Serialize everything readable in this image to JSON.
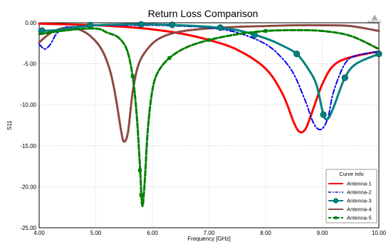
{
  "watermark": "ANSOFT",
  "chart_data": {
    "type": "line",
    "title": "Return Loss Comparison",
    "xlabel": "Frequency [GHz]",
    "ylabel": "S11",
    "xlim": [
      4.0,
      10.0
    ],
    "ylim": [
      -25.0,
      0.0
    ],
    "grid": true,
    "legend_position": "bottom-right",
    "legend_title": "Curve Info",
    "x_ticks": [
      4.0,
      5.0,
      6.0,
      7.0,
      8.0,
      9.0,
      10.0
    ],
    "x_tick_labels": [
      "4.00",
      "5.00",
      "6.00",
      "7.00",
      "8.00",
      "9.00",
      "10.00"
    ],
    "y_ticks": [
      0.0,
      -5.0,
      -10.0,
      -15.0,
      -20.0,
      -25.0
    ],
    "y_tick_labels": [
      "0.00",
      "-5.00",
      "-10.00",
      "-15.00",
      "-20.00",
      "-25.00"
    ],
    "series": [
      {
        "name": "Antenna-1",
        "color": "#ff0000",
        "style": "solid",
        "marker": "none",
        "points": [
          [
            4.0,
            -0.1
          ],
          [
            4.5,
            -0.2
          ],
          [
            5.0,
            -0.3
          ],
          [
            5.5,
            -0.5
          ],
          [
            6.0,
            -0.8
          ],
          [
            6.5,
            -1.3
          ],
          [
            7.0,
            -2.1
          ],
          [
            7.5,
            -3.3
          ],
          [
            8.0,
            -5.6
          ],
          [
            8.3,
            -8.7
          ],
          [
            8.5,
            -12.2
          ],
          [
            8.6,
            -13.3
          ],
          [
            8.7,
            -13.0
          ],
          [
            8.8,
            -11.3
          ],
          [
            9.0,
            -7.5
          ],
          [
            9.2,
            -5.2
          ],
          [
            9.5,
            -4.2
          ],
          [
            10.0,
            -3.5
          ]
        ]
      },
      {
        "name": "Antenna-2",
        "color": "#0000ee",
        "style": "dashdot",
        "marker": "none",
        "points": [
          [
            4.0,
            -2.6
          ],
          [
            4.1,
            -3.2
          ],
          [
            4.2,
            -2.6
          ],
          [
            4.3,
            -1.4
          ],
          [
            4.45,
            -0.6
          ],
          [
            4.6,
            -0.5
          ],
          [
            5.0,
            -0.3
          ],
          [
            5.5,
            -0.3
          ],
          [
            6.0,
            -0.3
          ],
          [
            6.5,
            -0.4
          ],
          [
            7.0,
            -0.6
          ],
          [
            7.5,
            -1.2
          ],
          [
            8.0,
            -2.6
          ],
          [
            8.3,
            -4.4
          ],
          [
            8.5,
            -6.3
          ],
          [
            8.7,
            -9.5
          ],
          [
            8.85,
            -12.3
          ],
          [
            8.98,
            -13.0
          ],
          [
            9.1,
            -11.6
          ],
          [
            9.2,
            -8.4
          ],
          [
            9.4,
            -5.0
          ],
          [
            9.6,
            -4.0
          ],
          [
            10.0,
            -3.5
          ]
        ]
      },
      {
        "name": "Antenna-3",
        "color": "#008080",
        "style": "solid",
        "marker": "circle",
        "points": [
          [
            4.0,
            -1.0
          ],
          [
            4.3,
            -0.9
          ],
          [
            4.6,
            -0.6
          ],
          [
            5.0,
            -0.3
          ],
          [
            5.5,
            -0.2
          ],
          [
            6.0,
            -0.2
          ],
          [
            6.5,
            -0.3
          ],
          [
            7.0,
            -0.5
          ],
          [
            7.5,
            -0.9
          ],
          [
            8.0,
            -1.9
          ],
          [
            8.3,
            -2.8
          ],
          [
            8.55,
            -3.8
          ],
          [
            8.75,
            -5.6
          ],
          [
            8.9,
            -7.6
          ],
          [
            9.02,
            -11.2
          ],
          [
            9.1,
            -11.7
          ],
          [
            9.2,
            -10.3
          ],
          [
            9.4,
            -6.7
          ],
          [
            9.6,
            -5.0
          ],
          [
            10.0,
            -3.8
          ]
        ],
        "markers_at": [
          [
            4.05,
            -0.95
          ],
          [
            4.9,
            -0.3
          ],
          [
            5.8,
            -0.2
          ],
          [
            6.35,
            -0.25
          ],
          [
            7.2,
            -0.6
          ],
          [
            7.8,
            -1.5
          ],
          [
            8.55,
            -3.8
          ],
          [
            9.02,
            -11.2
          ],
          [
            9.4,
            -6.7
          ],
          [
            10.0,
            -3.8
          ]
        ]
      },
      {
        "name": "Antenna-4",
        "color": "#8b4a44",
        "style": "solid",
        "marker": "none",
        "points": [
          [
            4.0,
            -2.4
          ],
          [
            4.15,
            -1.5
          ],
          [
            4.3,
            -0.9
          ],
          [
            4.5,
            -0.6
          ],
          [
            4.7,
            -0.8
          ],
          [
            4.9,
            -1.6
          ],
          [
            5.1,
            -3.2
          ],
          [
            5.25,
            -5.8
          ],
          [
            5.35,
            -9.0
          ],
          [
            5.45,
            -13.3
          ],
          [
            5.5,
            -14.5
          ],
          [
            5.57,
            -13.3
          ],
          [
            5.65,
            -8.5
          ],
          [
            5.75,
            -5.2
          ],
          [
            5.9,
            -3.3
          ],
          [
            6.1,
            -2.0
          ],
          [
            6.4,
            -1.2
          ],
          [
            6.8,
            -0.8
          ],
          [
            7.5,
            -0.5
          ],
          [
            8.0,
            -0.4
          ],
          [
            8.5,
            -0.3
          ],
          [
            9.0,
            -0.3
          ],
          [
            9.5,
            -0.4
          ],
          [
            10.0,
            -1.0
          ]
        ]
      },
      {
        "name": "Antenna-5",
        "color": "#008000",
        "style": "dashed",
        "marker": "square",
        "points": [
          [
            4.0,
            -1.4
          ],
          [
            4.5,
            -0.9
          ],
          [
            5.0,
            -0.7
          ],
          [
            5.2,
            -1.2
          ],
          [
            5.4,
            -1.8
          ],
          [
            5.55,
            -3.3
          ],
          [
            5.65,
            -6.5
          ],
          [
            5.72,
            -11.0
          ],
          [
            5.78,
            -17.5
          ],
          [
            5.82,
            -22.3
          ],
          [
            5.86,
            -19.8
          ],
          [
            5.92,
            -13.0
          ],
          [
            6.0,
            -8.2
          ],
          [
            6.1,
            -6.0
          ],
          [
            6.3,
            -4.3
          ],
          [
            6.6,
            -3.0
          ],
          [
            7.0,
            -2.1
          ],
          [
            7.5,
            -1.4
          ],
          [
            8.0,
            -1.0
          ],
          [
            8.5,
            -0.9
          ],
          [
            9.0,
            -1.0
          ],
          [
            9.5,
            -1.6
          ],
          [
            10.0,
            -3.2
          ]
        ],
        "markers_at": [
          [
            5.8,
            -21.0
          ],
          [
            5.78,
            -18.0
          ],
          [
            5.65,
            -6.5
          ],
          [
            6.3,
            -4.3
          ],
          [
            7.0,
            -2.1
          ],
          [
            8.0,
            -1.0
          ]
        ]
      }
    ]
  }
}
